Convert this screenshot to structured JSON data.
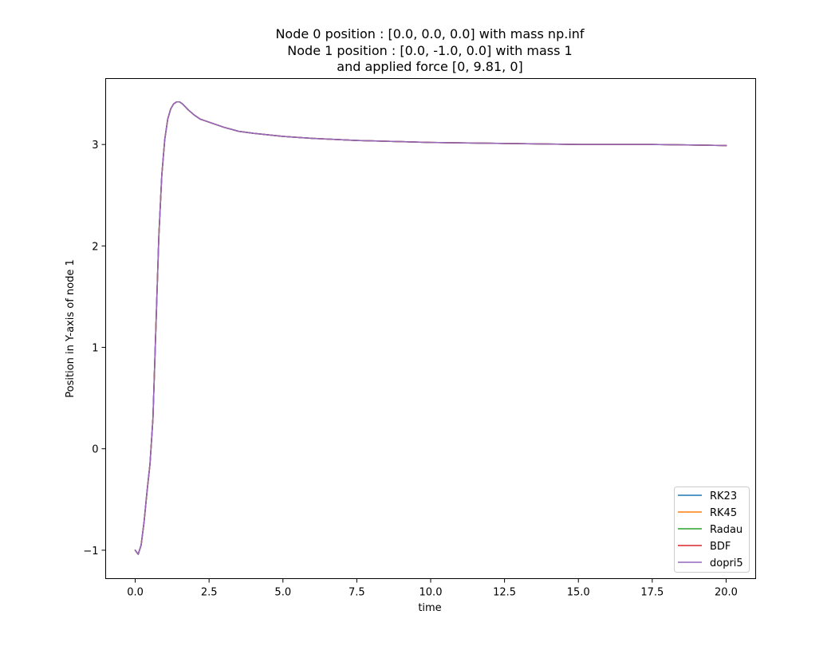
{
  "chart_data": {
    "type": "line",
    "title_lines": [
      "Node 0 position : [0.0, 0.0, 0.0] with mass np.inf",
      "Node 1 position : [0.0, -1.0, 0.0] with mass 1",
      "and applied force [0, 9.81, 0]"
    ],
    "xlabel": "time",
    "ylabel": "Position in Y-axis of node 1",
    "xlim": [
      -1.0,
      21.0
    ],
    "ylim": [
      -1.28,
      3.65
    ],
    "xticks": [
      0.0,
      2.5,
      5.0,
      7.5,
      10.0,
      12.5,
      15.0,
      17.5,
      20.0
    ],
    "xtick_labels": [
      "0.0",
      "2.5",
      "5.0",
      "7.5",
      "10.0",
      "12.5",
      "15.0",
      "17.5",
      "20.0"
    ],
    "yticks": [
      -1,
      0,
      1,
      2,
      3
    ],
    "ytick_labels": [
      "−1",
      "0",
      "1",
      "2",
      "3"
    ],
    "grid": false,
    "legend_position": "lower-right",
    "x": [
      0.0,
      0.1,
      0.2,
      0.3,
      0.4,
      0.5,
      0.6,
      0.7,
      0.8,
      0.9,
      1.0,
      1.1,
      1.2,
      1.3,
      1.4,
      1.5,
      1.6,
      1.7,
      1.8,
      2.0,
      2.2,
      2.5,
      3.0,
      3.5,
      4.0,
      5.0,
      6.0,
      7.5,
      10.0,
      12.5,
      15.0,
      17.5,
      20.0
    ],
    "series": [
      {
        "name": "RK23",
        "color": "#1f77b4",
        "values": [
          -1.0,
          -1.04,
          -0.95,
          -0.72,
          -0.42,
          -0.15,
          0.3,
          1.2,
          2.1,
          2.7,
          3.05,
          3.25,
          3.35,
          3.4,
          3.42,
          3.42,
          3.4,
          3.37,
          3.34,
          3.29,
          3.25,
          3.22,
          3.17,
          3.13,
          3.11,
          3.08,
          3.06,
          3.04,
          3.02,
          3.01,
          3.0,
          3.0,
          2.99
        ]
      },
      {
        "name": "RK45",
        "color": "#ff7f0e",
        "values": [
          -1.0,
          -1.04,
          -0.95,
          -0.72,
          -0.42,
          -0.15,
          0.3,
          1.2,
          2.1,
          2.7,
          3.05,
          3.25,
          3.35,
          3.4,
          3.42,
          3.42,
          3.4,
          3.37,
          3.34,
          3.29,
          3.25,
          3.22,
          3.17,
          3.13,
          3.11,
          3.08,
          3.06,
          3.04,
          3.02,
          3.01,
          3.0,
          3.0,
          2.99
        ]
      },
      {
        "name": "Radau",
        "color": "#2ca02c",
        "values": [
          -1.0,
          -1.04,
          -0.95,
          -0.72,
          -0.42,
          -0.15,
          0.3,
          1.2,
          2.1,
          2.7,
          3.05,
          3.25,
          3.35,
          3.4,
          3.42,
          3.42,
          3.4,
          3.37,
          3.34,
          3.29,
          3.25,
          3.22,
          3.17,
          3.13,
          3.11,
          3.08,
          3.06,
          3.04,
          3.02,
          3.01,
          3.0,
          3.0,
          2.99
        ]
      },
      {
        "name": "BDF",
        "color": "#d62728",
        "values": [
          -1.0,
          -1.04,
          -0.95,
          -0.72,
          -0.42,
          -0.15,
          0.3,
          1.2,
          2.1,
          2.7,
          3.05,
          3.25,
          3.35,
          3.4,
          3.42,
          3.42,
          3.4,
          3.37,
          3.34,
          3.29,
          3.25,
          3.22,
          3.17,
          3.13,
          3.11,
          3.08,
          3.06,
          3.04,
          3.02,
          3.01,
          3.0,
          3.0,
          2.99
        ]
      },
      {
        "name": "dopri5",
        "color": "#9467bd",
        "values": [
          -1.0,
          -1.04,
          -0.95,
          -0.72,
          -0.42,
          -0.15,
          0.3,
          1.2,
          2.1,
          2.7,
          3.05,
          3.25,
          3.35,
          3.4,
          3.42,
          3.42,
          3.4,
          3.37,
          3.34,
          3.29,
          3.25,
          3.22,
          3.17,
          3.13,
          3.11,
          3.08,
          3.06,
          3.04,
          3.02,
          3.01,
          3.0,
          3.0,
          2.99
        ]
      }
    ]
  }
}
